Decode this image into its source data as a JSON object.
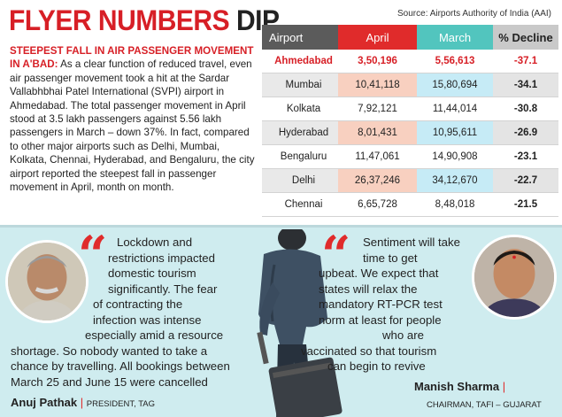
{
  "headline": {
    "part1": "FLYER NUMBERS",
    "part2": "DIP"
  },
  "source": "Source: Airports Authority of India (AAI)",
  "intro": {
    "lead": "STEEPEST FALL IN AIR PASSENGER MOVEMENT IN A'BAD:",
    "body": "As a clear function of reduced travel, even air passenger movement took a hit at the Sardar Vallabhbhai Patel International (SVPI) airport in Ahmedabad. The total passenger movement in April stood at 3.5 lakh passengers against 5.56 lakh passengers in March – down 37%. In fact, compared to other major airports such as Delhi, Mumbai, Kolkata, Chennai, Hyderabad, and Bengaluru, the city airport reported the steepest fall in passenger movement in April, month on month."
  },
  "table": {
    "headers": {
      "airport": "Airport",
      "april": "April",
      "march": "March",
      "decline": "% Decline"
    },
    "rows": [
      {
        "airport": "Ahmedabad",
        "april": "3,50,196",
        "march": "5,56,613",
        "decline": "-37.1"
      },
      {
        "airport": "Mumbai",
        "april": "10,41,118",
        "march": "15,80,694",
        "decline": "-34.1"
      },
      {
        "airport": "Kolkata",
        "april": "7,92,121",
        "march": "11,44,014",
        "decline": "-30.8"
      },
      {
        "airport": "Hyderabad",
        "april": "8,01,431",
        "march": "10,95,611",
        "decline": "-26.9"
      },
      {
        "airport": "Bengaluru",
        "april": "11,47,061",
        "march": "14,90,908",
        "decline": "-23.1"
      },
      {
        "airport": "Delhi",
        "april": "26,37,246",
        "march": "34,12,670",
        "decline": "-22.7"
      },
      {
        "airport": "Chennai",
        "april": "6,65,728",
        "march": "8,48,018",
        "decline": "-21.5"
      }
    ]
  },
  "quote_left": {
    "lines": [
      "Lockdown and",
      "restrictions impacted",
      "domestic tourism",
      "significantly. The fear",
      "of contracting the",
      "infection was intense",
      "especially amid a resource",
      "shortage. So nobody wanted to take a",
      "chance by travelling. All bookings between",
      "March 25 and June 15 were cancelled"
    ],
    "name": "Anuj Pathak",
    "role": "PRESIDENT, TAG"
  },
  "quote_right": {
    "lines": [
      "Sentiment will take",
      "time to get",
      "upbeat. We expect that",
      "states will relax the",
      "mandatory RT-PCR test",
      "norm at least for people",
      "who are",
      "vaccinated so that tourism",
      "can begin to revive"
    ],
    "name": "Manish Sharma",
    "role": "CHAIRMAN, TAFI – GUJARAT"
  },
  "colors": {
    "accent_red": "#d71f26",
    "april_header": "#e02b2b",
    "march_header": "#52c5be",
    "panel": "#cfecef"
  }
}
